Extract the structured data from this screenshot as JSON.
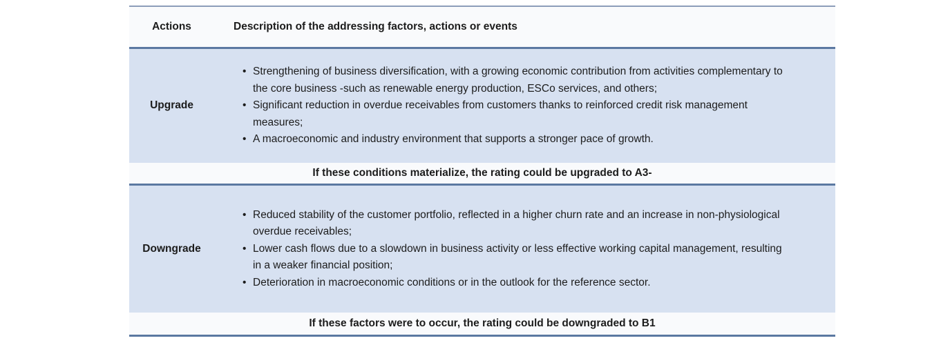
{
  "colors": {
    "row_blue": "#d7e1f1",
    "row_light": "#f9fafc",
    "border_dark": "#5b78a1",
    "border_light": "#8c9db9",
    "text": "#1c1c1c"
  },
  "table": {
    "header": {
      "col_action": "Actions",
      "col_description": "Description of the addressing factors, actions or events"
    },
    "sections": [
      {
        "action": "Upgrade",
        "bullets": [
          "Strengthening of business diversification, with a growing economic contribution from activities complementary to the core business -such as renewable energy production, ESCo services, and others;",
          "Significant reduction in overdue receivables from customers thanks to reinforced credit risk management measures;",
          "A macroeconomic and industry environment that supports a stronger pace of growth."
        ],
        "note": "If these conditions materialize, the rating could be upgraded to A3-"
      },
      {
        "action": "Downgrade",
        "bullets": [
          "Reduced stability of the customer portfolio, reflected in a higher churn rate and an increase in non-physiological overdue receivables;",
          "Lower cash flows due to a slowdown in business activity or less effective working capital management, resulting in a weaker financial position;",
          "Deterioration in macroeconomic conditions or in the outlook for the reference sector."
        ],
        "note": "If these factors were to occur, the rating could be downgraded to B1"
      }
    ]
  }
}
